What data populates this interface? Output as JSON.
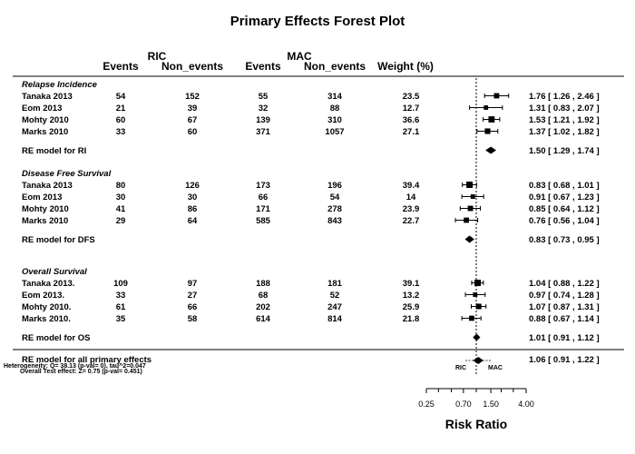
{
  "chart_data": {
    "type": "forest",
    "title": "Primary Effects Forest Plot",
    "xlabel": "Risk Ratio",
    "x_scale": "log",
    "x_ticks": [
      0.25,
      0.7,
      1.5,
      4.0
    ],
    "x_tick_labels": [
      "0.25",
      "0.70",
      "1.50",
      "4.00"
    ],
    "reference_line": 1,
    "group_headers": {
      "ric": "RIC",
      "mac": "MAC"
    },
    "column_headers": {
      "ric_events": "Events",
      "ric_non_events": "Non_events",
      "mac_events": "Events",
      "mac_non_events": "Non_events",
      "weight": "Weight (%)"
    },
    "sections": [
      {
        "name": "Relapse Incidence",
        "studies": [
          {
            "label": "Tanaka 2013",
            "ric_events": "54",
            "ric_non_events": "152",
            "mac_events": "55",
            "mac_non_events": "314",
            "weight": "23.5",
            "est": 1.76,
            "lo": 1.26,
            "hi": 2.46,
            "ci_text": "1.76 [ 1.26 , 2.46 ]"
          },
          {
            "label": "Eom 2013",
            "ric_events": "21",
            "ric_non_events": "39",
            "mac_events": "32",
            "mac_non_events": "88",
            "weight": "12.7",
            "est": 1.31,
            "lo": 0.83,
            "hi": 2.07,
            "ci_text": "1.31 [ 0.83 , 2.07 ]"
          },
          {
            "label": "Mohty 2010",
            "ric_events": "60",
            "ric_non_events": "67",
            "mac_events": "139",
            "mac_non_events": "310",
            "weight": "36.6",
            "est": 1.53,
            "lo": 1.21,
            "hi": 1.92,
            "ci_text": "1.53 [ 1.21 , 1.92 ]"
          },
          {
            "label": "Marks 2010",
            "ric_events": "33",
            "ric_non_events": "60",
            "mac_events": "371",
            "mac_non_events": "1057",
            "weight": "27.1",
            "est": 1.37,
            "lo": 1.02,
            "hi": 1.82,
            "ci_text": "1.37 [ 1.02 , 1.82 ]"
          }
        ],
        "summary": {
          "label": "RE model for RI",
          "est": 1.5,
          "lo": 1.29,
          "hi": 1.74,
          "ci_text": "1.50 [ 1.29 , 1.74 ]"
        }
      },
      {
        "name": "Disease Free Survival",
        "studies": [
          {
            "label": "Tanaka 2013",
            "ric_events": "80",
            "ric_non_events": "126",
            "mac_events": "173",
            "mac_non_events": "196",
            "weight": "39.4",
            "est": 0.83,
            "lo": 0.68,
            "hi": 1.01,
            "ci_text": "0.83 [ 0.68 , 1.01 ]"
          },
          {
            "label": "Eom 2013",
            "ric_events": "30",
            "ric_non_events": "30",
            "mac_events": "66",
            "mac_non_events": "54",
            "weight": "14",
            "est": 0.91,
            "lo": 0.67,
            "hi": 1.23,
            "ci_text": "0.91 [ 0.67 , 1.23 ]"
          },
          {
            "label": "Mohty 2010",
            "ric_events": "41",
            "ric_non_events": "86",
            "mac_events": "171",
            "mac_non_events": "278",
            "weight": "23.9",
            "est": 0.85,
            "lo": 0.64,
            "hi": 1.12,
            "ci_text": "0.85 [ 0.64 , 1.12 ]"
          },
          {
            "label": "Marks 2010",
            "ric_events": "29",
            "ric_non_events": "64",
            "mac_events": "585",
            "mac_non_events": "843",
            "weight": "22.7",
            "est": 0.76,
            "lo": 0.56,
            "hi": 1.04,
            "ci_text": "0.76 [ 0.56 , 1.04 ]"
          }
        ],
        "summary": {
          "label": "RE model for DFS",
          "est": 0.83,
          "lo": 0.73,
          "hi": 0.95,
          "ci_text": "0.83 [ 0.73 , 0.95 ]"
        }
      },
      {
        "name": "Overall Survival",
        "studies": [
          {
            "label": "Tanaka 2013.",
            "ric_events": "109",
            "ric_non_events": "97",
            "mac_events": "188",
            "mac_non_events": "181",
            "weight": "39.1",
            "est": 1.04,
            "lo": 0.88,
            "hi": 1.22,
            "ci_text": "1.04 [ 0.88 , 1.22 ]"
          },
          {
            "label": "Eom 2013.",
            "ric_events": "33",
            "ric_non_events": "27",
            "mac_events": "68",
            "mac_non_events": "52",
            "weight": "13.2",
            "est": 0.97,
            "lo": 0.74,
            "hi": 1.28,
            "ci_text": "0.97 [ 0.74 , 1.28 ]"
          },
          {
            "label": "Mohty 2010.",
            "ric_events": "61",
            "ric_non_events": "66",
            "mac_events": "202",
            "mac_non_events": "247",
            "weight": "25.9",
            "est": 1.07,
            "lo": 0.87,
            "hi": 1.31,
            "ci_text": "1.07 [ 0.87 , 1.31 ]"
          },
          {
            "label": "Marks 2010.",
            "ric_events": "35",
            "ric_non_events": "58",
            "mac_events": "614",
            "mac_non_events": "814",
            "weight": "21.8",
            "est": 0.88,
            "lo": 0.67,
            "hi": 1.14,
            "ci_text": "0.88 [ 0.67 , 1.14 ]"
          }
        ],
        "summary": {
          "label": "RE model for OS",
          "est": 1.01,
          "lo": 0.91,
          "hi": 1.12,
          "ci_text": "1.01 [ 0.91 , 1.12 ]"
        }
      }
    ],
    "overall": {
      "label": "RE model for all primary effects",
      "est": 1.06,
      "lo": 0.91,
      "hi": 1.22,
      "ci_text": "1.06 [ 0.91 , 1.22 ]",
      "heterogeneity": "Heterogeneity:   Q= 38.13 (p-val= 0),      tau^2=0.047",
      "test_effect": "Overall Test effect:   Z= 0.75 (p-val= 0.451)",
      "left_label": "RIC",
      "right_label": "MAC"
    }
  }
}
